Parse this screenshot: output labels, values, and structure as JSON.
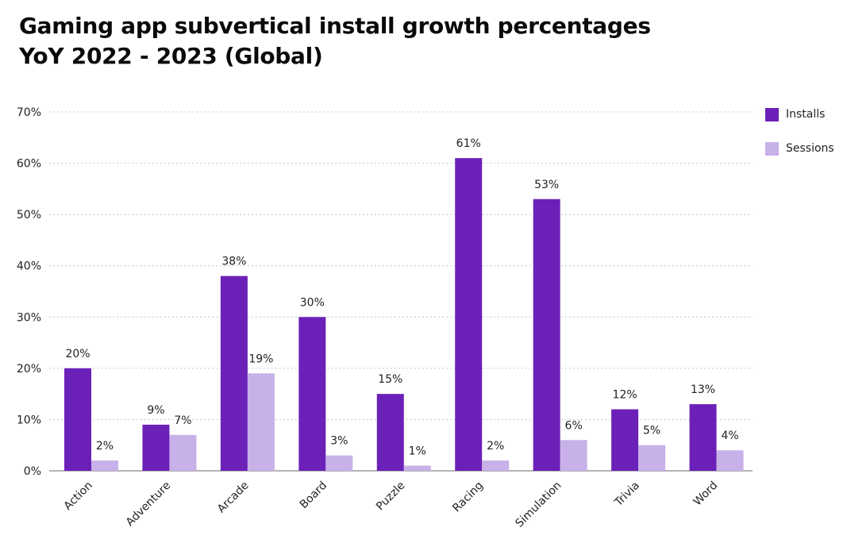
{
  "title_line1": "Gaming app subvertical install growth percentages",
  "title_line2": "YoY 2022 - 2023 (Global)",
  "colors": {
    "installs": "#6b21b8",
    "sessions": "#c8b0e8",
    "grid": "#c8c8c8",
    "axis": "#888888"
  },
  "chart_data": {
    "type": "bar",
    "title": "Gaming app subvertical install growth percentages YoY 2022 - 2023 (Global)",
    "xlabel": "",
    "ylabel": "",
    "ylim": [
      0,
      70
    ],
    "yticks": [
      0,
      10,
      20,
      30,
      40,
      50,
      60,
      70
    ],
    "ytick_labels": [
      "0%",
      "10%",
      "20%",
      "30%",
      "40%",
      "50%",
      "60%",
      "70%"
    ],
    "categories": [
      "Action",
      "Adventure",
      "Arcade",
      "Board",
      "Puzzle",
      "Racing",
      "Simulation",
      "Trivia",
      "Word"
    ],
    "series": [
      {
        "name": "Installs",
        "color": "#6b21b8",
        "values": [
          20,
          9,
          38,
          30,
          15,
          61,
          53,
          12,
          13
        ],
        "labels": [
          "20%",
          "9%",
          "38%",
          "30%",
          "15%",
          "61%",
          "53%",
          "12%",
          "13%"
        ]
      },
      {
        "name": "Sessions",
        "color": "#c8b0e8",
        "values": [
          2,
          7,
          19,
          3,
          1,
          2,
          6,
          5,
          4
        ],
        "labels": [
          "2%",
          "7%",
          "19%",
          "3%",
          "1%",
          "2%",
          "6%",
          "5%",
          "4%"
        ]
      }
    ],
    "grid": true,
    "legend": "top-right"
  }
}
